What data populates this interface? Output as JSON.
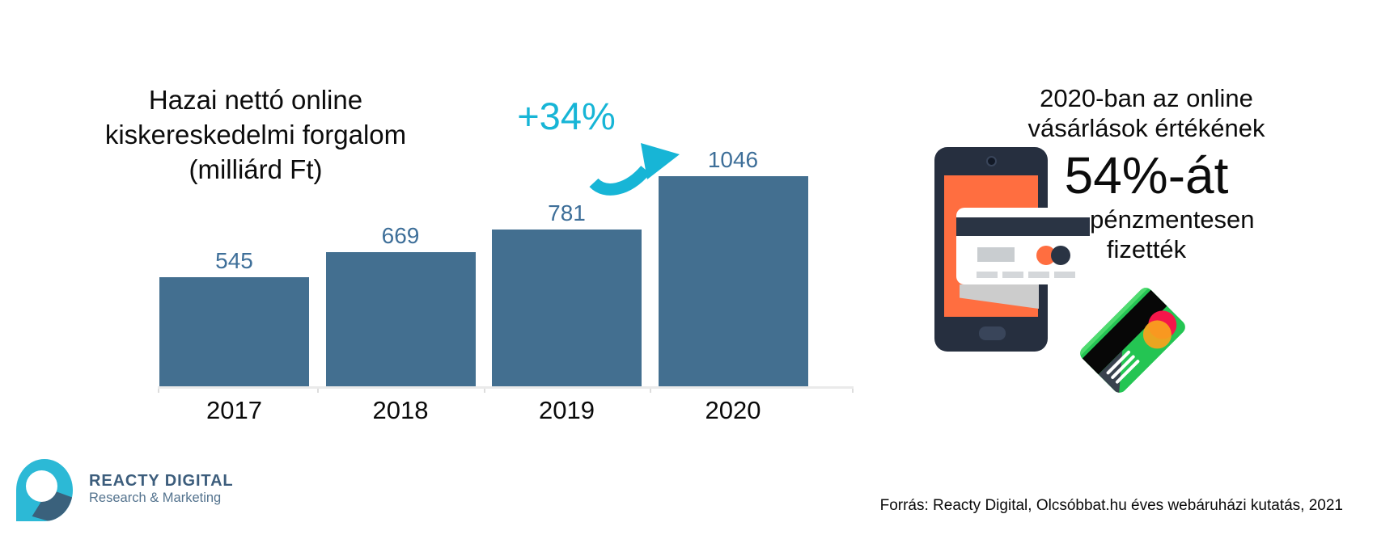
{
  "chart_data": {
    "type": "bar",
    "title": "Hazai nettó online kiskereskedelmi forgalom (milliárd Ft)",
    "title_lines": [
      "Hazai nettó online",
      "kiskereskedelmi forgalom",
      "(milliárd Ft)"
    ],
    "categories": [
      "2017",
      "2018",
      "2019",
      "2020"
    ],
    "values": [
      545,
      669,
      781,
      1046
    ],
    "unit": "milliárd Ft",
    "bar_color": "#436F90",
    "value_label_color": "#3E6F99",
    "annotation": {
      "label": "+34%",
      "color": "#17B5D6",
      "applies_to": "2019→2020"
    },
    "ylim": [
      0,
      1100
    ],
    "grid": false,
    "legend": "none"
  },
  "right_panel": {
    "heading_lines": [
      "2020-ban az online",
      "vásárlások értékének"
    ],
    "stat_value": "54%-át",
    "sub_lines": [
      "készpénzmentesen",
      "fizették"
    ]
  },
  "icons": {
    "phone": "smartphone-icon",
    "card": "credit-card-icon",
    "green_card": "bank-card-icon",
    "arrow": "growth-arrow-icon",
    "logo": "reacty-digital-logo"
  },
  "colors": {
    "accent_cyan": "#17B5D6",
    "bar_blue": "#436F90",
    "illustration_orange": "#FF6E40",
    "illustration_navy": "#262F3F",
    "card_green": "#24C553"
  },
  "footer": {
    "logo_title": "REACTY DIGITAL",
    "logo_subtitle": "Research & Marketing",
    "source": "Forrás: Reacty Digital, Olcsóbbat.hu éves webáruházi kutatás, 2021"
  }
}
